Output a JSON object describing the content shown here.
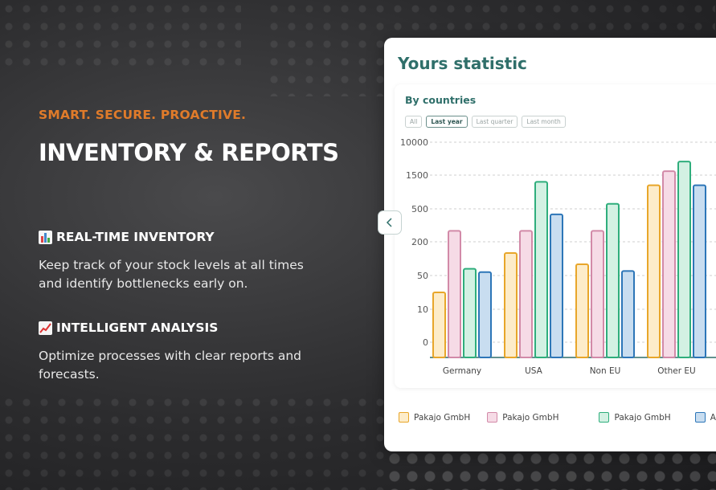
{
  "hero": {
    "tagline": "SMART. SECURE. PROACTIVE.",
    "headline": "INVENTORY & REPORTS"
  },
  "features": [
    {
      "icon": "bar-chart-icon",
      "title": "REAL-TIME INVENTORY",
      "description": "Keep track of your stock levels at all times and identify bottlenecks early on."
    },
    {
      "icon": "chart-increasing-icon",
      "title": "INTELLIGENT ANALYSIS",
      "description": "Optimize processes with clear reports and forecasts."
    }
  ],
  "card": {
    "title": "Yours statistic",
    "subtitle": "By countries",
    "filters": [
      "All",
      "Last year",
      "Last quarter",
      "Last month"
    ],
    "active_filter": "Last year",
    "nav_icon": "chevron-left-icon"
  },
  "colors": {
    "accent_orange": "#e07b2a",
    "heading_teal": "#2f6f6a",
    "series": [
      "#e8a62a",
      "#d28aa8",
      "#2fae7c",
      "#2d76b8"
    ],
    "series_fill": [
      "#fdecc9",
      "#f6dbe6",
      "#d3f1e3",
      "#c8ddf0"
    ]
  },
  "chart_data": {
    "type": "bar",
    "categories": [
      "Germany",
      "USA",
      "Non EU",
      "Other EU"
    ],
    "y_ticks": [
      "10000",
      "1500",
      "500",
      "200",
      "50",
      "10",
      "0"
    ],
    "y_tick_values": [
      10000,
      1500,
      500,
      200,
      50,
      10,
      0
    ],
    "y_scale": "nonlinear (custom tick spacing)",
    "grid": true,
    "legend": "bottom",
    "series": [
      {
        "name": "Pakajo GmbH",
        "values": [
          30,
          150,
          100,
          1200
        ]
      },
      {
        "name": "Pakajo GmbH",
        "values": [
          300,
          300,
          300,
          2500
        ]
      },
      {
        "name": "Pakajo GmbH",
        "values": [
          80,
          1300,
          650,
          5000
        ]
      },
      {
        "name": "All",
        "values": [
          65,
          450,
          70,
          1200
        ]
      }
    ]
  },
  "legend_labels": [
    "Pakajo GmbH",
    "Pakajo GmbH",
    "Pakajo GmbH",
    "All"
  ]
}
